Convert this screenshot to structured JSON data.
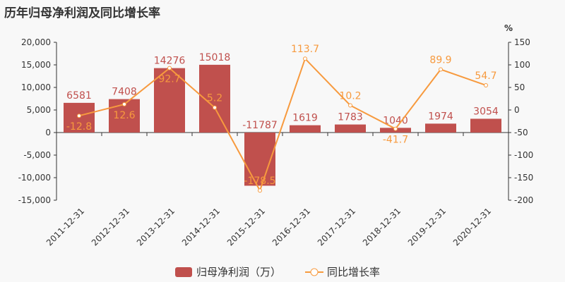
{
  "title": "历年归母净利润及同比增长率",
  "chart_data": {
    "type": "bar+line",
    "categories": [
      "2011-12-31",
      "2012-12-31",
      "2013-12-31",
      "2014-12-31",
      "2015-12-31",
      "2016-12-31",
      "2017-12-31",
      "2018-12-31",
      "2019-12-31",
      "2020-12-31"
    ],
    "series": [
      {
        "name": "归母净利润（万）",
        "type": "bar",
        "axis": "left",
        "color": "#c0504d",
        "values": [
          6581,
          7408,
          14276,
          15018,
          -11787,
          1619,
          1783,
          1040,
          1974,
          3054
        ]
      },
      {
        "name": "同比增长率",
        "type": "line",
        "axis": "right",
        "color": "#f79a3e",
        "values": [
          -12.8,
          12.6,
          92.7,
          5.2,
          -178.5,
          113.7,
          10.2,
          -41.7,
          89.9,
          54.7
        ]
      }
    ],
    "left_axis": {
      "ylim": [
        -15000,
        20000
      ],
      "ticks": [
        "-15,000",
        "-10,000",
        "-5,000",
        "0",
        "5,000",
        "10,000",
        "15,000",
        "20,000"
      ],
      "tickvals": [
        -15000,
        -10000,
        -5000,
        0,
        5000,
        10000,
        15000,
        20000
      ]
    },
    "right_axis": {
      "label": "%",
      "ylim": [
        -200,
        150
      ],
      "ticks": [
        "-200",
        "-150",
        "-100",
        "-50",
        "0",
        "50",
        "100",
        "150"
      ],
      "tickvals": [
        -200,
        -150,
        -100,
        -50,
        0,
        50,
        100,
        150
      ]
    },
    "legend": "bottom",
    "grid": false
  }
}
